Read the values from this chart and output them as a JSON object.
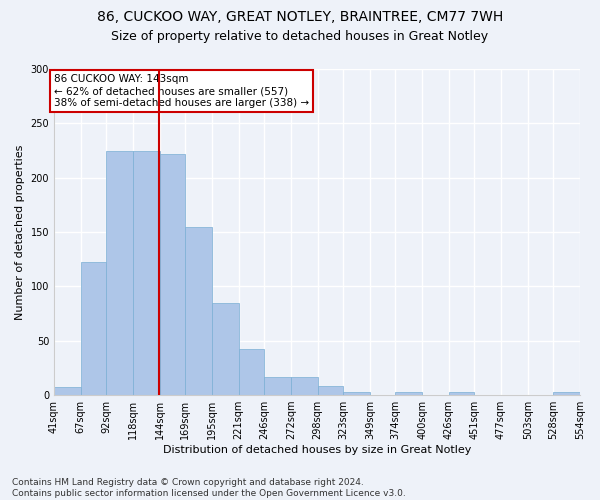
{
  "title1": "86, CUCKOO WAY, GREAT NOTLEY, BRAINTREE, CM77 7WH",
  "title2": "Size of property relative to detached houses in Great Notley",
  "xlabel": "Distribution of detached houses by size in Great Notley",
  "ylabel": "Number of detached properties",
  "bin_edges": [
    41,
    67,
    92,
    118,
    144,
    169,
    195,
    221,
    246,
    272,
    298,
    323,
    349,
    374,
    400,
    426,
    451,
    477,
    503,
    528,
    554
  ],
  "bar_heights": [
    7,
    122,
    225,
    225,
    222,
    155,
    85,
    42,
    17,
    17,
    8,
    3,
    0,
    3,
    0,
    3,
    0,
    0,
    0,
    3
  ],
  "bar_color": "#aec6e8",
  "bar_edgecolor": "#7bafd4",
  "property_size": 143,
  "red_line_color": "#cc0000",
  "annotation_text": "86 CUCKOO WAY: 143sqm\n← 62% of detached houses are smaller (557)\n38% of semi-detached houses are larger (338) →",
  "annotation_box_color": "#ffffff",
  "annotation_box_edgecolor": "#cc0000",
  "ylim": [
    0,
    300
  ],
  "yticks": [
    0,
    50,
    100,
    150,
    200,
    250,
    300
  ],
  "footnote": "Contains HM Land Registry data © Crown copyright and database right 2024.\nContains public sector information licensed under the Open Government Licence v3.0.",
  "background_color": "#eef2f9",
  "grid_color": "#ffffff",
  "title_fontsize": 10,
  "subtitle_fontsize": 9,
  "axis_label_fontsize": 8,
  "tick_fontsize": 7,
  "footnote_fontsize": 6.5
}
